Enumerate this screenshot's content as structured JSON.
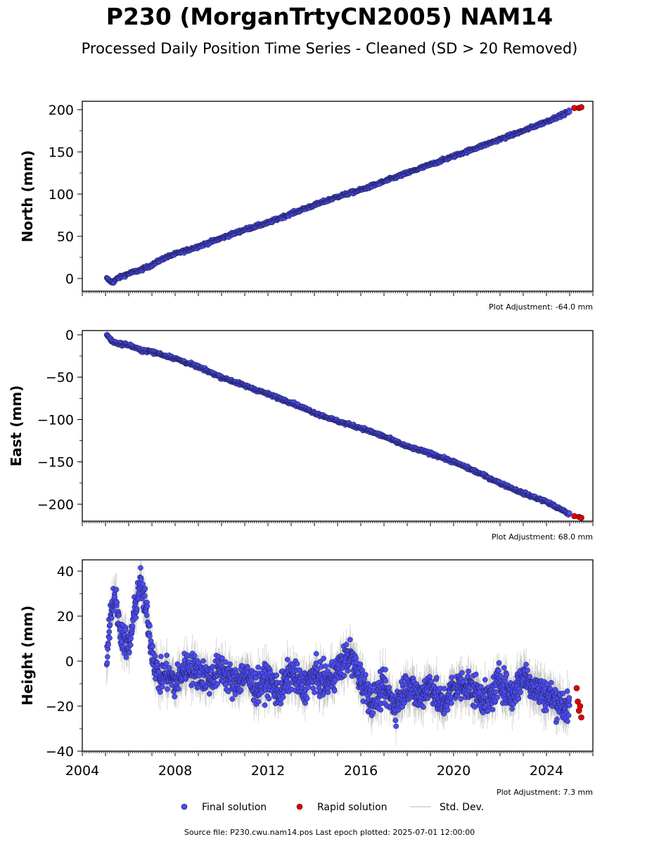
{
  "title": "P230 (MorganTrtyCN2005) NAM14",
  "subtitle": "Processed Daily Position Time Series - Cleaned (SD > 20 Removed)",
  "footer": {
    "source": "Source file: P230.cwu.nam14.pos  Last epoch plotted: 2025-07-01 12:00:00"
  },
  "legend": [
    {
      "label": "Final solution",
      "color": "#4b4bf0",
      "kind": "point"
    },
    {
      "label": "Rapid solution",
      "color": "#e00000",
      "kind": "point"
    },
    {
      "label": "Std. Dev.",
      "color": "#cccccc",
      "kind": "line"
    }
  ],
  "colors": {
    "final": "#4b4bf0",
    "rapid": "#e00000",
    "stddev": "#b0b0b0",
    "edge": "#1a1a40"
  },
  "chart_data": [
    {
      "type": "scatter",
      "ylabel": "North (mm)",
      "adjustment": "Plot Adjustment: -64.0 mm",
      "xlim": [
        2004.0,
        2026.0
      ],
      "ylim": [
        -15,
        210
      ],
      "yticks": [
        0,
        50,
        100,
        150,
        200
      ],
      "yticklabels": [
        "0",
        "50",
        "100",
        "150",
        "200"
      ],
      "xticks": [
        2004,
        2008,
        2012,
        2016,
        2020,
        2024
      ],
      "xticklabels": [],
      "series": [
        {
          "name": "Final solution",
          "x": [
            2005.05,
            2005.3,
            2005.5,
            2006.0,
            2006.5,
            2007.0,
            2007.5,
            2008.0,
            2009.0,
            2010.0,
            2011.0,
            2012.0,
            2013.0,
            2014.0,
            2015.0,
            2016.0,
            2017.0,
            2018.0,
            2019.0,
            2020.0,
            2021.0,
            2022.0,
            2023.0,
            2024.0,
            2025.0
          ],
          "y": [
            0,
            -5,
            0,
            6,
            10,
            16,
            24,
            29,
            38,
            48,
            58,
            66,
            77,
            87,
            97,
            105,
            115,
            125,
            135,
            145,
            155,
            165,
            175,
            186,
            198
          ]
        },
        {
          "name": "Rapid solution",
          "x": [
            2025.2,
            2025.4,
            2025.5
          ],
          "y": [
            202,
            202,
            203
          ]
        }
      ]
    },
    {
      "type": "scatter",
      "ylabel": "East (mm)",
      "adjustment": "Plot Adjustment: 68.0 mm",
      "xlim": [
        2004.0,
        2026.0
      ],
      "ylim": [
        -220,
        5
      ],
      "yticks": [
        0,
        -50,
        -100,
        -150,
        -200
      ],
      "yticklabels": [
        "0",
        "−50",
        "−100",
        "−150",
        "−200"
      ],
      "xticks": [
        2004,
        2008,
        2012,
        2016,
        2020,
        2024
      ],
      "xticklabels": [],
      "series": [
        {
          "name": "Final solution",
          "x": [
            2005.05,
            2005.3,
            2005.5,
            2006.0,
            2006.5,
            2007.0,
            2008.0,
            2009.0,
            2010.0,
            2011.0,
            2012.0,
            2013.0,
            2014.0,
            2015.0,
            2016.0,
            2017.0,
            2018.0,
            2019.0,
            2020.0,
            2021.0,
            2022.0,
            2023.0,
            2024.0,
            2025.0
          ],
          "y": [
            0,
            -8,
            -10,
            -12,
            -18,
            -20,
            -28,
            -38,
            -50,
            -60,
            -70,
            -80,
            -92,
            -102,
            -110,
            -120,
            -132,
            -140,
            -150,
            -162,
            -175,
            -187,
            -197,
            -212
          ]
        },
        {
          "name": "Rapid solution",
          "x": [
            2025.2,
            2025.4,
            2025.5
          ],
          "y": [
            -214,
            -215,
            -216
          ]
        }
      ]
    },
    {
      "type": "scatter",
      "ylabel": "Height (mm)",
      "adjustment": "Plot Adjustment: 7.3 mm",
      "xlim": [
        2004.0,
        2026.0
      ],
      "ylim": [
        -40,
        45
      ],
      "yticks": [
        40,
        20,
        0,
        -20,
        -40
      ],
      "yticklabels": [
        "40",
        "20",
        "0",
        "−20",
        "−40"
      ],
      "xticks": [
        2004,
        2008,
        2012,
        2016,
        2020,
        2024
      ],
      "xticklabels": [
        "2004",
        "2008",
        "2012",
        "2016",
        "2020",
        "2024"
      ],
      "series": [
        {
          "name": "Final solution",
          "x": [
            2005.05,
            2005.2,
            2005.4,
            2005.6,
            2005.8,
            2006.0,
            2006.3,
            2006.5,
            2006.8,
            2007.0,
            2007.3,
            2007.6,
            2008.0,
            2008.5,
            2009.0,
            2009.5,
            2010.0,
            2010.5,
            2011.0,
            2011.5,
            2012.0,
            2012.5,
            2013.0,
            2013.5,
            2014.0,
            2014.5,
            2015.0,
            2015.5,
            2016.0,
            2016.5,
            2017.0,
            2017.5,
            2018.0,
            2018.5,
            2019.0,
            2019.5,
            2020.0,
            2020.5,
            2021.0,
            2021.5,
            2022.0,
            2022.5,
            2023.0,
            2023.5,
            2024.0,
            2024.5,
            2025.0
          ],
          "y": [
            2,
            20,
            30,
            15,
            10,
            5,
            25,
            35,
            20,
            5,
            -8,
            -5,
            -10,
            -2,
            -5,
            -8,
            -3,
            -10,
            -6,
            -12,
            -8,
            -14,
            -5,
            -12,
            -6,
            -10,
            -4,
            3,
            -8,
            -18,
            -12,
            -20,
            -10,
            -16,
            -10,
            -20,
            -12,
            -10,
            -14,
            -18,
            -8,
            -16,
            -6,
            -12,
            -15,
            -18,
            -22
          ]
        },
        {
          "name": "Rapid solution",
          "x": [
            2025.3,
            2025.35,
            2025.4,
            2025.45,
            2025.5
          ],
          "y": [
            -12,
            -18,
            -22,
            -20,
            -25
          ]
        }
      ]
    }
  ]
}
